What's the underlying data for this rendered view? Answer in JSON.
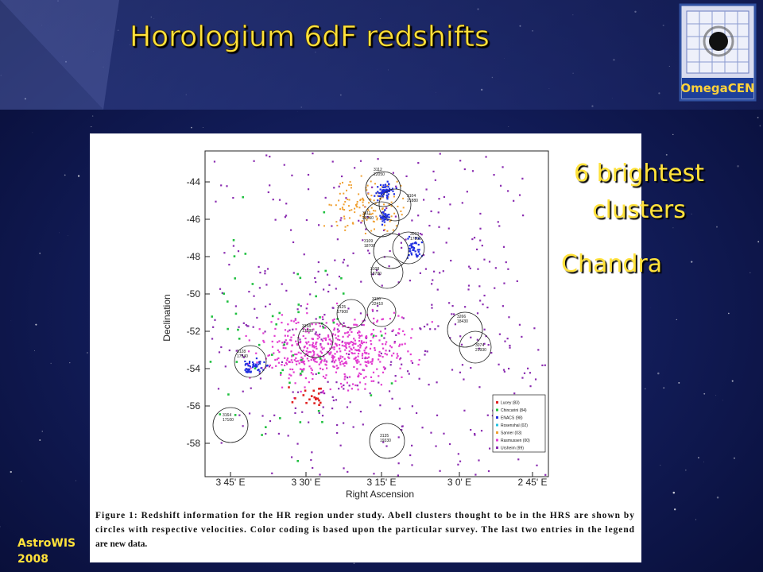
{
  "header": {
    "title": "Horologium 6dF redshifts",
    "logo": "OmegaCEN"
  },
  "figure": {
    "y_label": "Declination",
    "x_label": "Right Ascension",
    "yticks": [
      "-44",
      "-46",
      "-48",
      "-50",
      "-52",
      "-54",
      "-56",
      "-58"
    ],
    "xticks": [
      "3 45' E",
      "3 30' E",
      "3 15' E",
      "3 0' E",
      "2 45' E"
    ],
    "clusters": [
      {
        "name": "3112",
        "velocity": "22050"
      },
      {
        "name": "3104",
        "velocity": "21880"
      },
      {
        "name": "3111",
        "velocity": "23250"
      },
      {
        "name": "3109",
        "velocity": "18700"
      },
      {
        "name": "3093",
        "velocity": "17890"
      },
      {
        "name": "3108",
        "velocity": "18780"
      },
      {
        "name": "3125",
        "velocity": "17900"
      },
      {
        "name": "3110",
        "velocity": "22410"
      },
      {
        "name": "3128",
        "velocity": "17940"
      },
      {
        "name": "3158",
        "velocity": "17880"
      },
      {
        "name": "3266",
        "velocity": "18430"
      },
      {
        "name": "3074",
        "velocity": "21930"
      },
      {
        "name": "3164",
        "velocity": "17100"
      },
      {
        "name": "3135",
        "velocity": "19330"
      }
    ],
    "legend": [
      "Lucey (83)",
      "Chincarini (84)",
      "ENACS (98)",
      "Rosenshal (02)",
      "Sanner (03)",
      "Rasmussen (00)",
      "Ursheim (99)"
    ],
    "caption": [
      "Figure 1: Redshift information for the HR region under study. Abell clusters thought to be in the HRS are shown by",
      "circles with respective velocities. Color coding is based upon the particular survey. The last two entries in the legend",
      "are new data."
    ]
  },
  "notes": [
    "6 brightest",
    "clusters",
    "Chandra"
  ],
  "footer": [
    "AstroWIS",
    "2008"
  ]
}
